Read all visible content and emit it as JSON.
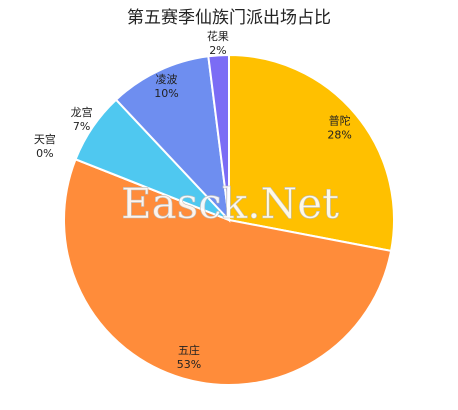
{
  "chart_data": {
    "type": "pie",
    "title": "第五赛季仙族门派出场占比",
    "categories": [
      "普陀",
      "五庄",
      "天宫",
      "龙宫",
      "凌波",
      "花果"
    ],
    "values": [
      28,
      53,
      0,
      7,
      10,
      2
    ],
    "value_labels": [
      "28%",
      "53%",
      "0%",
      "7%",
      "10%",
      "2%"
    ],
    "colors": [
      "#FFC000",
      "#FF8C3A",
      "#A9A9A9",
      "#4FC8F0",
      "#6E8EF0",
      "#7B6CF5"
    ],
    "watermark": "Easck.Net"
  }
}
